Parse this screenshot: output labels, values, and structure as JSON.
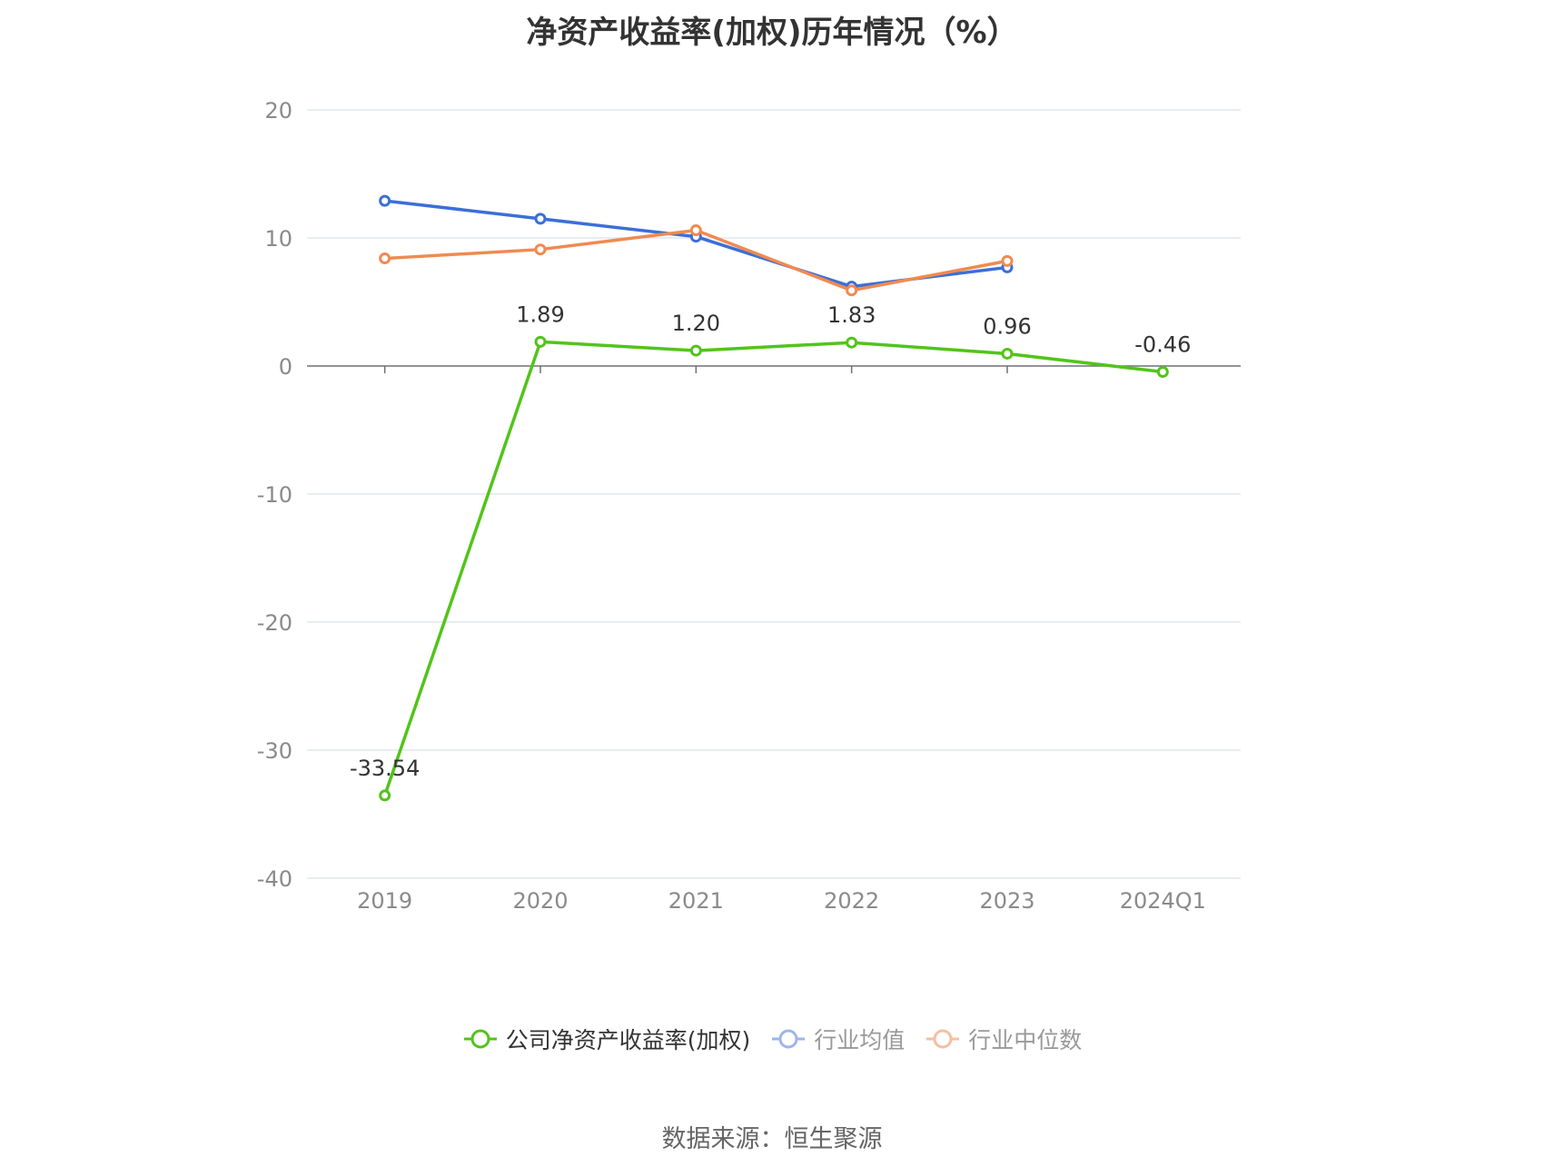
{
  "chart_data": {
    "type": "line",
    "title": "净资产收益率(加权)历年情况（%）",
    "categories": [
      "2019",
      "2020",
      "2021",
      "2022",
      "2023",
      "2024Q1"
    ],
    "ylim": [
      -40,
      20
    ],
    "yticks": [
      20,
      10,
      0,
      -10,
      -20,
      -30,
      -40
    ],
    "grid": true,
    "legend_position": "bottom",
    "series": [
      {
        "name": "公司净资产收益率(加权)",
        "color": "#52c41a",
        "values": [
          -33.54,
          1.89,
          1.2,
          1.83,
          0.96,
          -0.46
        ],
        "labels": [
          "-33.54",
          "1.89",
          "1.20",
          "1.83",
          "0.96",
          "-0.46"
        ]
      },
      {
        "name": "行业均值",
        "color": "#3b6fd8",
        "values": [
          12.9,
          11.5,
          10.1,
          6.2,
          7.7,
          null
        ]
      },
      {
        "name": "行业中位数",
        "color": "#f08a50",
        "values": [
          8.4,
          9.1,
          10.6,
          5.9,
          8.2,
          null
        ]
      }
    ]
  },
  "source": "数据来源：恒生聚源"
}
